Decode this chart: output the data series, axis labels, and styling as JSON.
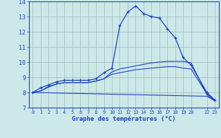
{
  "xlabel": "Graphe des températures (°C)",
  "bg_color": "#cce8e8",
  "grid_color": "#a0b8b8",
  "line_color": "#1a3fc4",
  "xlim": [
    -0.5,
    23.5
  ],
  "ylim": [
    7,
    14
  ],
  "yticks": [
    7,
    8,
    9,
    10,
    11,
    12,
    13,
    14
  ],
  "xticks": [
    0,
    1,
    2,
    3,
    4,
    5,
    6,
    7,
    8,
    9,
    10,
    11,
    12,
    13,
    14,
    15,
    16,
    17,
    18,
    19,
    20,
    22,
    23
  ],
  "curve1_x": [
    0,
    1,
    2,
    3,
    4,
    5,
    6,
    7,
    8,
    9,
    10,
    11,
    12,
    13,
    14,
    15,
    16,
    17,
    18,
    19,
    20,
    22,
    23
  ],
  "curve1_y": [
    8.0,
    8.3,
    8.5,
    8.7,
    8.8,
    8.8,
    8.8,
    8.8,
    8.9,
    9.3,
    9.6,
    12.4,
    13.3,
    13.7,
    13.2,
    13.0,
    12.9,
    12.2,
    11.6,
    10.3,
    9.8,
    8.0,
    7.5
  ],
  "curve2_x": [
    0,
    1,
    2,
    3,
    4,
    5,
    6,
    7,
    8,
    9,
    10,
    11,
    12,
    13,
    14,
    15,
    16,
    17,
    18,
    19,
    20,
    22,
    23
  ],
  "curve2_y": [
    8.0,
    8.1,
    8.4,
    8.55,
    8.65,
    8.65,
    8.65,
    8.65,
    8.75,
    8.9,
    9.2,
    9.3,
    9.4,
    9.5,
    9.55,
    9.6,
    9.65,
    9.7,
    9.7,
    9.6,
    9.55,
    7.9,
    7.5
  ],
  "curve3_x": [
    0,
    1,
    2,
    3,
    4,
    5,
    6,
    7,
    8,
    9,
    10,
    11,
    12,
    13,
    14,
    15,
    16,
    17,
    18,
    19,
    20,
    22,
    23
  ],
  "curve3_y": [
    8.0,
    8.1,
    8.35,
    8.55,
    8.65,
    8.65,
    8.65,
    8.65,
    8.75,
    8.9,
    9.35,
    9.55,
    9.65,
    9.75,
    9.85,
    9.95,
    10.0,
    10.05,
    10.05,
    10.05,
    9.95,
    7.85,
    7.45
  ],
  "curve4_x": [
    0,
    22,
    23
  ],
  "curve4_y": [
    8.0,
    7.75,
    7.45
  ]
}
